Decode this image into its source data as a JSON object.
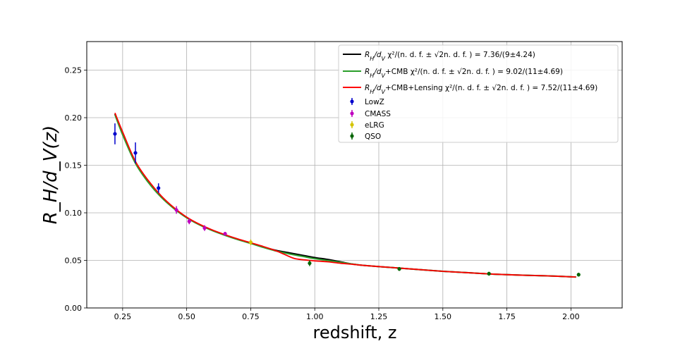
{
  "chart_data": {
    "type": "line",
    "xlabel": "redshift, z",
    "ylabel": "R_H/d_V(z)",
    "xlim": [
      0.11,
      2.2
    ],
    "ylim": [
      0.0,
      0.28
    ],
    "xticks": [
      0.25,
      0.5,
      0.75,
      1.0,
      1.25,
      1.5,
      1.75,
      2.0
    ],
    "xtick_labels": [
      "0.25",
      "0.50",
      "0.75",
      "1.00",
      "1.25",
      "1.50",
      "1.75",
      "2.00"
    ],
    "yticks": [
      0.0,
      0.05,
      0.1,
      0.15,
      0.2,
      0.25
    ],
    "ytick_labels": [
      "0.00",
      "0.05",
      "0.10",
      "0.15",
      "0.20",
      "0.25"
    ],
    "grid": true,
    "legend_position": "upper-right",
    "series": [
      {
        "name": "R_H/d_V χ²/(n.d.f. ± √(2n.d.f.)) = 7.36/(9±4.24)",
        "color": "#000000",
        "x": [
          0.22,
          0.25,
          0.3,
          0.35,
          0.4,
          0.45,
          0.5,
          0.55,
          0.6,
          0.65,
          0.7,
          0.75,
          0.8,
          0.85,
          0.9,
          0.95,
          1.0,
          1.05,
          1.1,
          1.15,
          1.2,
          1.3,
          1.4,
          1.5,
          1.6,
          1.7,
          1.8,
          1.9,
          2.02
        ],
        "y": [
          0.204,
          0.183,
          0.153,
          0.133,
          0.117,
          0.105,
          0.095,
          0.0875,
          0.0815,
          0.0765,
          0.072,
          0.068,
          0.064,
          0.0605,
          0.058,
          0.0555,
          0.053,
          0.051,
          0.0485,
          0.046,
          0.0445,
          0.0425,
          0.0405,
          0.0385,
          0.037,
          0.0355,
          0.0345,
          0.0338,
          0.0325
        ]
      },
      {
        "name": "R_H/d_V+CMB χ²/(n.d.f. ± √(2n.d.f.)) = 9.02/(11±4.69)",
        "color": "#2ca02c",
        "x": [
          0.22,
          0.25,
          0.3,
          0.35,
          0.4,
          0.45,
          0.5,
          0.55,
          0.6,
          0.65,
          0.7,
          0.75,
          0.8,
          0.85,
          0.9,
          0.95,
          1.0,
          1.05,
          1.1,
          1.15,
          1.2,
          1.3,
          1.4,
          1.5,
          1.6,
          1.7,
          1.8,
          1.9,
          2.02
        ],
        "y": [
          0.203,
          0.182,
          0.152,
          0.132,
          0.1165,
          0.1045,
          0.0948,
          0.0873,
          0.0813,
          0.0763,
          0.0718,
          0.0678,
          0.0636,
          0.0598,
          0.0568,
          0.0543,
          0.0518,
          0.0498,
          0.048,
          0.046,
          0.0445,
          0.0425,
          0.0405,
          0.0385,
          0.037,
          0.0355,
          0.0345,
          0.0338,
          0.0325
        ]
      },
      {
        "name": "R_H/d_V+CMB+Lensing χ²/(n.d.f. ± √(2n.d.f.)) = 7.52/(11±4.69)",
        "color": "#ff0000",
        "x": [
          0.22,
          0.25,
          0.3,
          0.35,
          0.4,
          0.45,
          0.5,
          0.55,
          0.6,
          0.65,
          0.7,
          0.75,
          0.8,
          0.85,
          0.88,
          0.92,
          0.96,
          1.0,
          1.05,
          1.1,
          1.15,
          1.2,
          1.3,
          1.4,
          1.5,
          1.6,
          1.7,
          1.8,
          1.9,
          2.02
        ],
        "y": [
          0.205,
          0.185,
          0.154,
          0.134,
          0.118,
          0.1055,
          0.0955,
          0.088,
          0.082,
          0.077,
          0.0725,
          0.0685,
          0.0645,
          0.06,
          0.0565,
          0.052,
          0.0505,
          0.0495,
          0.0485,
          0.047,
          0.0458,
          0.0445,
          0.0425,
          0.0405,
          0.0385,
          0.037,
          0.0355,
          0.0345,
          0.0338,
          0.0325
        ]
      }
    ],
    "datasets": [
      {
        "name": "LowZ",
        "color": "#0000cc",
        "points": [
          {
            "x": 0.22,
            "y": 0.183,
            "err": 0.011
          },
          {
            "x": 0.3,
            "y": 0.163,
            "err": 0.011
          },
          {
            "x": 0.39,
            "y": 0.126,
            "err": 0.005
          }
        ]
      },
      {
        "name": "CMASS",
        "color": "#bf00bf",
        "points": [
          {
            "x": 0.46,
            "y": 0.103,
            "err": 0.004
          },
          {
            "x": 0.51,
            "y": 0.091,
            "err": 0.003
          },
          {
            "x": 0.57,
            "y": 0.084,
            "err": 0.003
          },
          {
            "x": 0.65,
            "y": 0.078,
            "err": 0.002
          }
        ]
      },
      {
        "name": "eLRG",
        "color": "#d4c400",
        "points": [
          {
            "x": 0.75,
            "y": 0.069,
            "err": 0.003
          }
        ]
      },
      {
        "name": "QSO",
        "color": "#006400",
        "points": [
          {
            "x": 0.98,
            "y": 0.047,
            "err": 0.003
          },
          {
            "x": 1.33,
            "y": 0.041,
            "err": 0.002
          },
          {
            "x": 1.68,
            "y": 0.036,
            "err": 0.002
          },
          {
            "x": 2.03,
            "y": 0.035,
            "err": 0.002
          }
        ]
      }
    ],
    "legend": {
      "line_entries": [
        {
          "prefix": "R",
          "sub": "H",
          "mid": "/d",
          "sub2": "V",
          "suffix": "",
          "chi": " χ²/(n. d. f. ± √2n. d. f. ) = 7.36/(9±4.24)"
        },
        {
          "prefix": "R",
          "sub": "H",
          "mid": "/d",
          "sub2": "V",
          "suffix": "+CMB",
          "chi": " χ²/(n. d. f. ± √2n. d. f. ) = 9.02/(11±4.69)"
        },
        {
          "prefix": "R",
          "sub": "H",
          "mid": "/d",
          "sub2": "V",
          "suffix": "+CMB+Lensing",
          "chi": " χ²/(n. d. f. ± √2n. d. f. ) = 7.52/(11±4.69)"
        }
      ],
      "marker_entries": [
        "LowZ",
        "CMASS",
        "eLRG",
        "QSO"
      ]
    }
  }
}
